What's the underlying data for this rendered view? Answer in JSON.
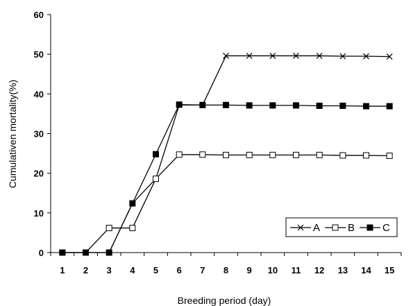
{
  "chart_data": {
    "type": "line",
    "title": "",
    "xlabel": "Breeding period (day)",
    "ylabel": "Cumulativen mortality(%)",
    "x": [
      1,
      2,
      3,
      4,
      5,
      6,
      7,
      8,
      9,
      10,
      11,
      12,
      13,
      14,
      15
    ],
    "x_tick_labels": [
      "1",
      "2",
      "3",
      "4",
      "5",
      "6",
      "7",
      "8",
      "9",
      "10",
      "11",
      "12",
      "13",
      "14",
      "15"
    ],
    "ylim": [
      0,
      60
    ],
    "y_ticks": [
      0,
      10,
      20,
      30,
      40,
      50,
      60
    ],
    "y_tick_labels": [
      "0",
      "10",
      "20",
      "30",
      "40",
      "50",
      "60"
    ],
    "grid": false,
    "legend_position": "bottom-right",
    "series": [
      {
        "name": "A",
        "marker": "x",
        "color": "#000000",
        "values": [
          0,
          0,
          0,
          12.4,
          18.6,
          37.2,
          37.2,
          49.6,
          49.6,
          49.6,
          49.6,
          49.6,
          49.5,
          49.5,
          49.4
        ]
      },
      {
        "name": "B",
        "marker": "open-square",
        "color": "#000000",
        "values": [
          0,
          0,
          6.2,
          6.2,
          18.6,
          24.7,
          24.7,
          24.6,
          24.6,
          24.6,
          24.6,
          24.6,
          24.5,
          24.5,
          24.4
        ]
      },
      {
        "name": "C",
        "marker": "filled-square",
        "color": "#000000",
        "values": [
          0,
          0,
          0,
          12.4,
          24.8,
          37.3,
          37.2,
          37.2,
          37.1,
          37.1,
          37.1,
          37.0,
          37.0,
          36.9,
          36.9
        ]
      }
    ]
  }
}
